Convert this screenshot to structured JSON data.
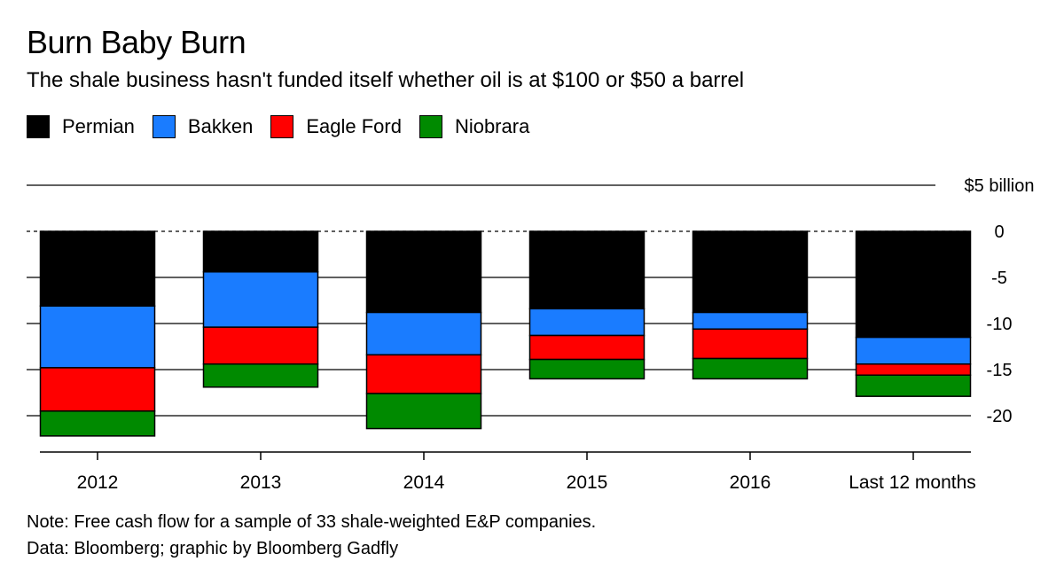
{
  "header": {
    "title": "Burn Baby Burn",
    "subtitle": "The shale business hasn't funded itself whether oil is at $100 or $50 a barrel"
  },
  "legend": [
    {
      "name": "Permian",
      "color": "#000000"
    },
    {
      "name": "Bakken",
      "color": "#1a7cff"
    },
    {
      "name": "Eagle Ford",
      "color": "#ff0000"
    },
    {
      "name": "Niobrara",
      "color": "#008a00"
    }
  ],
  "chart_data": {
    "type": "bar",
    "stacked": true,
    "title": "Burn Baby Burn",
    "ylabel": "",
    "xlabel": "",
    "ylim": [
      -25,
      5
    ],
    "y_ticks": [
      5,
      0,
      -5,
      -10,
      -15,
      -20
    ],
    "y_tick_labels": [
      "$5 billion",
      "0",
      "-5",
      "-10",
      "-15",
      "-20"
    ],
    "zero_line": "dashed",
    "categories": [
      "2012",
      "2013",
      "2014",
      "2015",
      "2016",
      "Last 12 months"
    ],
    "series": [
      {
        "name": "Permian",
        "color": "#000000",
        "values": [
          -8.1,
          -4.4,
          -8.8,
          -8.4,
          -8.8,
          -11.5
        ]
      },
      {
        "name": "Bakken",
        "color": "#1a7cff",
        "values": [
          -6.7,
          -6.0,
          -4.6,
          -2.9,
          -1.8,
          -2.9
        ]
      },
      {
        "name": "Eagle Ford",
        "color": "#ff0000",
        "values": [
          -4.7,
          -4.0,
          -4.2,
          -2.6,
          -3.2,
          -1.2
        ]
      },
      {
        "name": "Niobrara",
        "color": "#008a00",
        "values": [
          -2.7,
          -2.5,
          -3.8,
          -2.1,
          -2.2,
          -2.3
        ]
      }
    ]
  },
  "notes": {
    "note": "Note: Free cash flow for a sample of 33 shale-weighted E&P companies.",
    "source": "Data: Bloomberg; graphic by Bloomberg Gadfly"
  }
}
